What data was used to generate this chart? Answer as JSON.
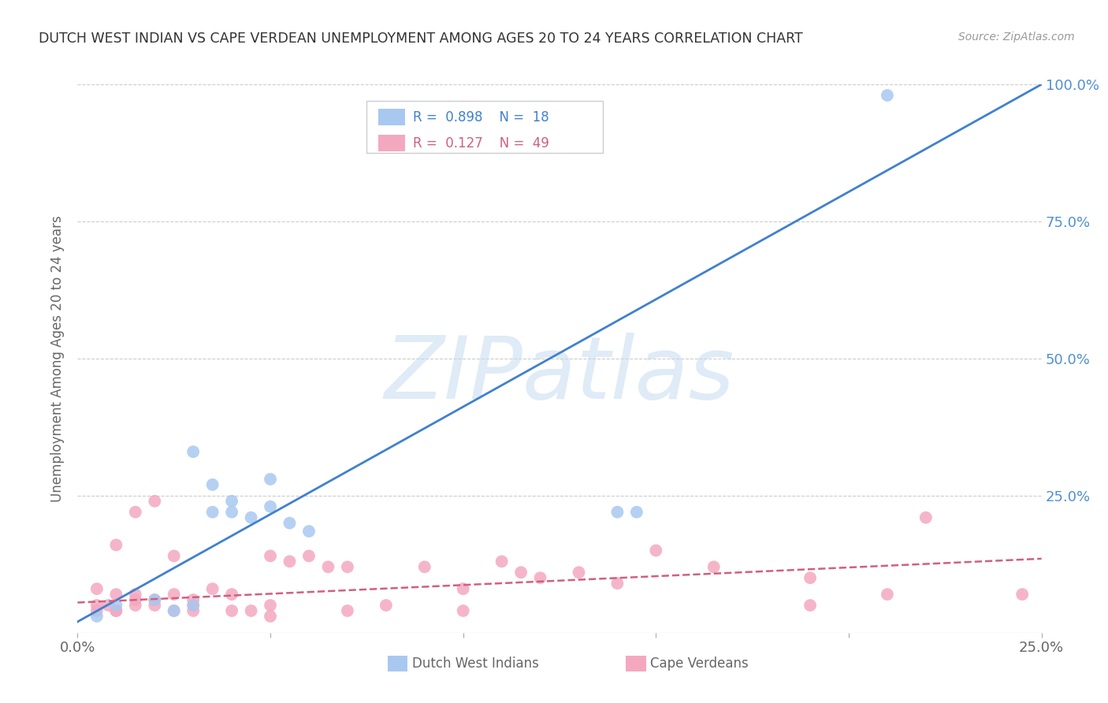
{
  "title": "DUTCH WEST INDIAN VS CAPE VERDEAN UNEMPLOYMENT AMONG AGES 20 TO 24 YEARS CORRELATION CHART",
  "source": "Source: ZipAtlas.com",
  "xlabel_blue": "Dutch West Indians",
  "xlabel_pink": "Cape Verdeans",
  "ylabel": "Unemployment Among Ages 20 to 24 years",
  "xmin": 0.0,
  "xmax": 0.25,
  "ymin": 0.0,
  "ymax": 1.0,
  "blue_R": 0.898,
  "blue_N": 18,
  "pink_R": 0.127,
  "pink_N": 49,
  "blue_color": "#a8c8f0",
  "pink_color": "#f4a8c0",
  "blue_line_color": "#4080d0",
  "pink_line_color": "#d06080",
  "blue_scatter_x": [
    0.005,
    0.01,
    0.02,
    0.025,
    0.03,
    0.03,
    0.035,
    0.035,
    0.04,
    0.04,
    0.045,
    0.05,
    0.05,
    0.055,
    0.06,
    0.14,
    0.145,
    0.21
  ],
  "blue_scatter_y": [
    0.03,
    0.05,
    0.06,
    0.04,
    0.05,
    0.33,
    0.27,
    0.22,
    0.22,
    0.24,
    0.21,
    0.23,
    0.28,
    0.2,
    0.185,
    0.22,
    0.22,
    0.98
  ],
  "pink_scatter_x": [
    0.005,
    0.005,
    0.005,
    0.008,
    0.01,
    0.01,
    0.01,
    0.01,
    0.015,
    0.015,
    0.015,
    0.015,
    0.02,
    0.02,
    0.02,
    0.025,
    0.025,
    0.025,
    0.03,
    0.03,
    0.03,
    0.035,
    0.04,
    0.04,
    0.045,
    0.05,
    0.05,
    0.05,
    0.055,
    0.06,
    0.065,
    0.07,
    0.07,
    0.08,
    0.09,
    0.1,
    0.1,
    0.11,
    0.115,
    0.12,
    0.13,
    0.14,
    0.15,
    0.165,
    0.19,
    0.19,
    0.21,
    0.22,
    0.245
  ],
  "pink_scatter_y": [
    0.05,
    0.04,
    0.08,
    0.05,
    0.04,
    0.07,
    0.04,
    0.16,
    0.05,
    0.06,
    0.07,
    0.22,
    0.05,
    0.06,
    0.24,
    0.04,
    0.07,
    0.14,
    0.04,
    0.05,
    0.06,
    0.08,
    0.04,
    0.07,
    0.04,
    0.14,
    0.03,
    0.05,
    0.13,
    0.14,
    0.12,
    0.12,
    0.04,
    0.05,
    0.12,
    0.08,
    0.04,
    0.13,
    0.11,
    0.1,
    0.11,
    0.09,
    0.15,
    0.12,
    0.05,
    0.1,
    0.07,
    0.21,
    0.07
  ],
  "blue_line_x": [
    0.0,
    0.25
  ],
  "blue_line_y": [
    0.02,
    1.0
  ],
  "pink_line_x": [
    0.0,
    0.25
  ],
  "pink_line_y": [
    0.055,
    0.135
  ],
  "watermark": "ZIPatlas",
  "background_color": "#ffffff",
  "grid_color": "#cccccc",
  "right_axis_color": "#5090d0",
  "title_color": "#333333",
  "source_color": "#999999",
  "label_color": "#666666"
}
